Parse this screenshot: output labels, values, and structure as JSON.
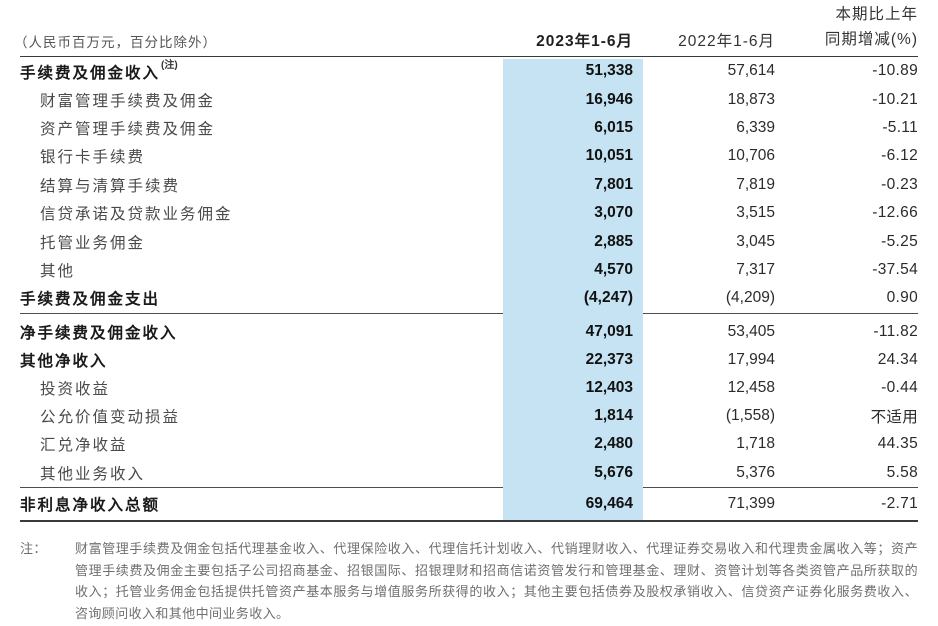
{
  "colors": {
    "highlight": "#c5e3f3",
    "rule_dark": "#3a3a3a",
    "rule_mid": "#4d4d4d",
    "text_dark": "#1a1a1a",
    "text_label": "#4a4a4a",
    "text_footnote": "#6f6f6f"
  },
  "header": {
    "unit_note": "（人民币百万元，百分比除外）",
    "col_2023": "2023年1-6月",
    "col_2022": "2022年1-6月",
    "col_change_line1": "本期比上年",
    "col_change_line2": "同期增减(%)"
  },
  "table": {
    "sections": [
      {
        "name": "fee-and-commission-income",
        "rows": [
          {
            "label": "手续费及佣金收入",
            "sup": "(注)",
            "style": "bold",
            "v2023": "51,338",
            "v2022": "57,614",
            "chg": "-10.89"
          },
          {
            "label": "财富管理手续费及佣金",
            "style": "indent",
            "v2023": "16,946",
            "v2022": "18,873",
            "chg": "-10.21"
          },
          {
            "label": "资产管理手续费及佣金",
            "style": "indent",
            "v2023": "6,015",
            "v2022": "6,339",
            "chg": "-5.11"
          },
          {
            "label": "银行卡手续费",
            "style": "indent",
            "v2023": "10,051",
            "v2022": "10,706",
            "chg": "-6.12"
          },
          {
            "label": "结算与清算手续费",
            "style": "indent",
            "v2023": "7,801",
            "v2022": "7,819",
            "chg": "-0.23"
          },
          {
            "label": "信贷承诺及贷款业务佣金",
            "style": "indent",
            "v2023": "3,070",
            "v2022": "3,515",
            "chg": "-12.66"
          },
          {
            "label": "托管业务佣金",
            "style": "indent",
            "v2023": "2,885",
            "v2022": "3,045",
            "chg": "-5.25"
          },
          {
            "label": "其他",
            "style": "indent",
            "v2023": "4,570",
            "v2022": "7,317",
            "chg": "-37.54"
          },
          {
            "label": "手续费及佣金支出",
            "style": "bold",
            "v2023": "(4,247)",
            "v2022": "(4,209)",
            "chg": "0.90"
          }
        ]
      },
      {
        "name": "net-income",
        "rows": [
          {
            "label": "净手续费及佣金收入",
            "style": "bold",
            "v2023": "47,091",
            "v2022": "53,405",
            "chg": "-11.82"
          },
          {
            "label": "其他净收入",
            "style": "bold",
            "v2023": "22,373",
            "v2022": "17,994",
            "chg": "24.34"
          },
          {
            "label": "投资收益",
            "style": "indent",
            "v2023": "12,403",
            "v2022": "12,458",
            "chg": "-0.44"
          },
          {
            "label": "公允价值变动损益",
            "style": "indent",
            "v2023": "1,814",
            "v2022": "(1,558)",
            "chg": "不适用"
          },
          {
            "label": "汇兑净收益",
            "style": "indent",
            "v2023": "2,480",
            "v2022": "1,718",
            "chg": "44.35"
          },
          {
            "label": "其他业务收入",
            "style": "indent",
            "v2023": "5,676",
            "v2022": "5,376",
            "chg": "5.58"
          }
        ]
      },
      {
        "name": "total",
        "rows": [
          {
            "label": "非利息净收入总额",
            "style": "bold",
            "v2023": "69,464",
            "v2022": "71,399",
            "chg": "-2.71"
          }
        ]
      }
    ]
  },
  "footnote": {
    "label": "注：",
    "text": "财富管理手续费及佣金包括代理基金收入、代理保险收入、代理信托计划收入、代销理财收入、代理证券交易收入和代理贵金属收入等；资产管理手续费及佣金主要包括子公司招商基金、招银国际、招银理财和招商信诺资管发行和管理基金、理财、资管计划等各类资管产品所获取的收入；托管业务佣金包括提供托管资产基本服务与增值服务所获得的收入；其他主要包括债券及股权承销收入、信贷资产证券化服务费收入、咨询顾问收入和其他中间业务收入。"
  }
}
